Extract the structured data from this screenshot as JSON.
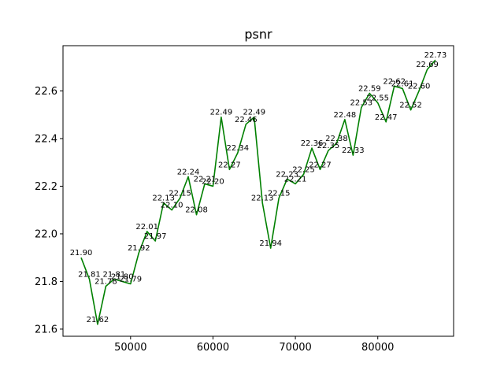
{
  "chart_data": {
    "type": "line",
    "title": "psnr",
    "xlabel": "",
    "ylabel": "",
    "xlim": [
      41800,
      89200
    ],
    "ylim": [
      21.57,
      22.79
    ],
    "xticks": [
      50000,
      60000,
      70000,
      80000
    ],
    "xtick_labels": [
      "50000",
      "60000",
      "70000",
      "80000"
    ],
    "yticks": [
      21.6,
      21.8,
      22.0,
      22.2,
      22.4,
      22.6
    ],
    "ytick_labels": [
      "21.6",
      "21.8",
      "22.0",
      "22.2",
      "22.4",
      "22.6"
    ],
    "grid": false,
    "line_color": "#008000",
    "series": [
      {
        "x": [
          44000,
          45000,
          46000,
          47000,
          48000,
          49000,
          50000,
          51000,
          52000,
          53000,
          54000,
          55000,
          56000,
          57000,
          58000,
          59000,
          60000,
          61000,
          62000,
          63000,
          64000,
          65000,
          66000,
          67000,
          68000,
          69000,
          70000,
          71000,
          72000,
          73000,
          74000,
          75000,
          76000,
          77000,
          78000,
          79000,
          80000,
          81000,
          82000,
          83000,
          84000,
          85000,
          86000,
          87000
        ],
        "y": [
          21.9,
          21.81,
          21.62,
          21.78,
          21.81,
          21.8,
          21.79,
          21.92,
          22.01,
          21.97,
          22.13,
          22.1,
          22.15,
          22.24,
          22.08,
          22.21,
          22.2,
          22.49,
          22.27,
          22.34,
          22.46,
          22.49,
          22.13,
          21.94,
          22.15,
          22.23,
          22.21,
          22.25,
          22.36,
          22.27,
          22.35,
          22.38,
          22.48,
          22.33,
          22.53,
          22.59,
          22.55,
          22.47,
          22.62,
          22.61,
          22.52,
          22.6,
          22.69,
          22.73
        ],
        "labels": [
          "21.90",
          "21.81",
          "21.62",
          "21.78",
          "21.81",
          "21.80",
          "21.79",
          "21.92",
          "22.01",
          "21.97",
          "22.13",
          "22.10",
          "22.15",
          "22.24",
          "22.08",
          "22.21",
          "22.20",
          "22.49",
          "22.27",
          "22.34",
          "22.46",
          "22.49",
          "22.13",
          "21.94",
          "22.15",
          "22.23",
          "22.21",
          "22.25",
          "22.36",
          "22.27",
          "22.35",
          "22.38",
          "22.48",
          "22.33",
          "22.53",
          "22.59",
          "22.55",
          "22.47",
          "22.62",
          "22.61",
          "22.52",
          "22.60",
          "22.69",
          "22.73"
        ]
      }
    ]
  }
}
